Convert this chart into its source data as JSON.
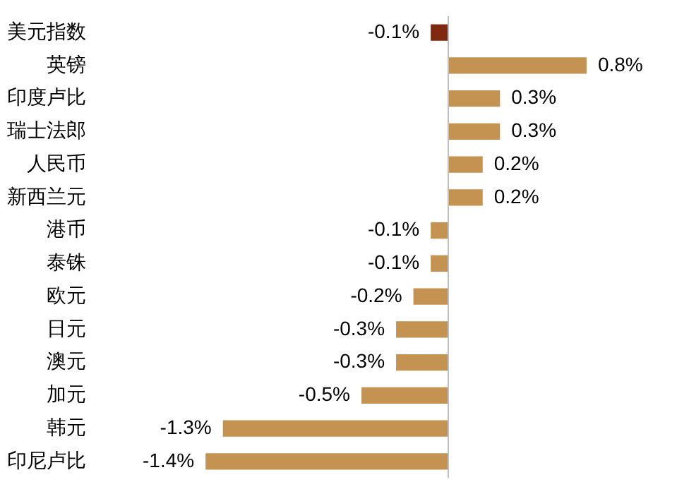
{
  "chart_data": {
    "type": "bar",
    "orientation": "horizontal",
    "categories": [
      "美元指数",
      "英镑",
      "印度卢比",
      "瑞士法郎",
      "人民币",
      "新西兰元",
      "港币",
      "泰铢",
      "欧元",
      "日元",
      "澳元",
      "加元",
      "韩元",
      "印尼卢比"
    ],
    "values": [
      -0.1,
      0.8,
      0.3,
      0.3,
      0.2,
      0.2,
      -0.1,
      -0.1,
      -0.2,
      -0.3,
      -0.3,
      -0.5,
      -1.3,
      -1.4
    ],
    "value_labels": [
      "-0.1%",
      "0.8%",
      "0.3%",
      "0.3%",
      "0.2%",
      "0.2%",
      "-0.1%",
      "-0.1%",
      "-0.2%",
      "-0.3%",
      "-0.3%",
      "-0.5%",
      "-1.3%",
      "-1.4%"
    ],
    "colors": [
      "#7f2a0e",
      "#c49352",
      "#c49352",
      "#c49352",
      "#c49352",
      "#c49352",
      "#c49352",
      "#c49352",
      "#c49352",
      "#c49352",
      "#c49352",
      "#c49352",
      "#c49352",
      "#c49352"
    ],
    "tick_labels": "y",
    "legend": false
  }
}
